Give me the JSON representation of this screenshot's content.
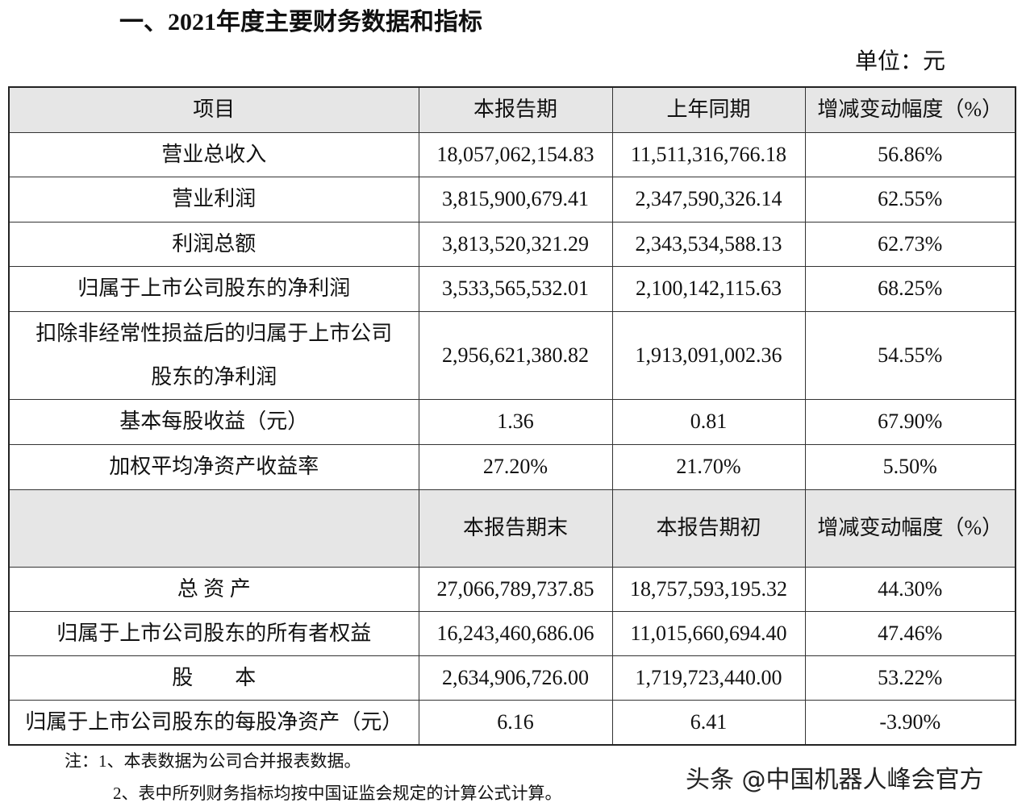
{
  "header": {
    "title": "一、2021年度主要财务数据和指标",
    "unit": "单位：元"
  },
  "table": {
    "sections": [
      {
        "header": [
          "项目",
          "本报告期",
          "上年同期",
          "增减变动幅度（%）"
        ],
        "rows": [
          [
            "营业总收入",
            "18,057,062,154.83",
            "11,511,316,766.18",
            "56.86%"
          ],
          [
            "营业利润",
            "3,815,900,679.41",
            "2,347,590,326.14",
            "62.55%"
          ],
          [
            "利润总额",
            "3,813,520,321.29",
            "2,343,534,588.13",
            "62.73%"
          ],
          [
            "归属于上市公司股东的净利润",
            "3,533,565,532.01",
            "2,100,142,115.63",
            "68.25%"
          ],
          [
            "扣除非经常性损益后的归属于上市公司\n股东的净利润",
            "2,956,621,380.82",
            "1,913,091,002.36",
            "54.55%"
          ],
          [
            "基本每股收益（元）",
            "1.36",
            "0.81",
            "67.90%"
          ],
          [
            "加权平均净资产收益率",
            "27.20%",
            "21.70%",
            "5.50%"
          ]
        ]
      },
      {
        "header": [
          "本报告期末",
          "本报告期初",
          "增减变动幅度（%）"
        ],
        "rows": [
          [
            "总 资 产",
            "27,066,789,737.85",
            "18,757,593,195.32",
            "44.30%"
          ],
          [
            "归属于上市公司股东的所有者权益",
            "16,243,460,686.06",
            "11,015,660,694.40",
            "47.46%"
          ],
          [
            "股　　本",
            "2,634,906,726.00",
            "1,719,723,440.00",
            "53.22%"
          ],
          [
            "归属于上市公司股东的每股净资产（元）",
            "6.16",
            "6.41",
            "-3.90%"
          ]
        ]
      }
    ]
  },
  "notes": [
    "注：1、本表数据为公司合并报表数据。",
    "2、表中所列财务指标均按中国证监会规定的计算公式计算。"
  ],
  "watermark": "头条 @中国机器人峰会官方"
}
